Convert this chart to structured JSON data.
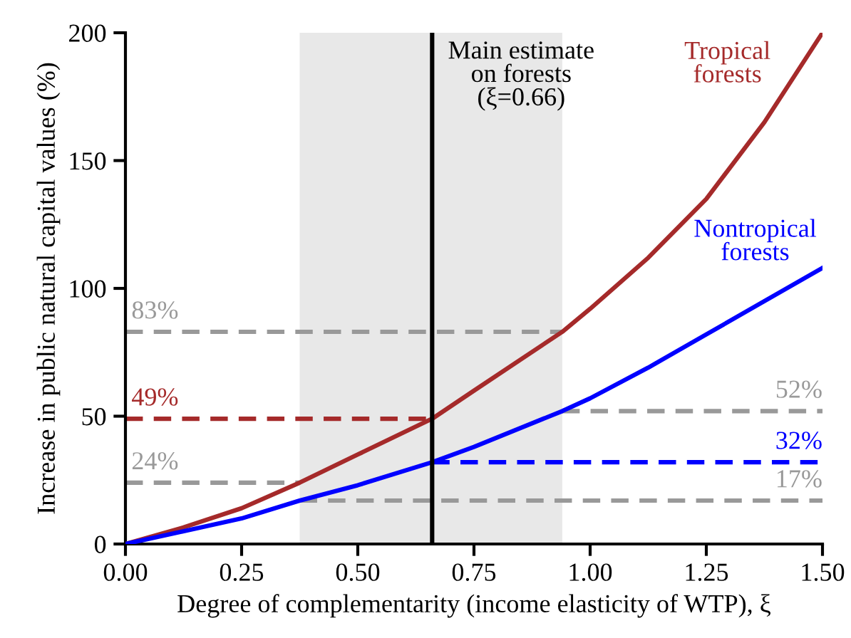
{
  "chart_data": {
    "type": "line",
    "xlabel": "Degree of complementarity (income elasticity of WTP), ξ",
    "ylabel": "Increase in public natural capital values (%)",
    "xlim": [
      0,
      1.5
    ],
    "ylim": [
      0,
      200
    ],
    "xticks": [
      {
        "value": 0,
        "label": "0.00"
      },
      0.25,
      {
        "value": 0.5,
        "label": "0.50"
      },
      0.75,
      {
        "value": 1.0,
        "label": "1.00"
      },
      1.25,
      {
        "value": 1.5,
        "label": "1.50"
      }
    ],
    "yticks": [
      0,
      50,
      100,
      150,
      200
    ],
    "grid": false,
    "legend": false,
    "bands": [
      {
        "axis": "x",
        "from": 0.375,
        "to": 0.94,
        "color": "#e8e8e8"
      }
    ],
    "ref_lines": [
      {
        "axis": "x",
        "value": 0.66,
        "label": "Main estimate\non forests\n(ξ=0.66)",
        "color": "#000000",
        "line_style": "solid"
      }
    ],
    "series": [
      {
        "name": "83%",
        "color": "#999999",
        "line_style": "dashed",
        "x": [
          0,
          0.94
        ],
        "values": [
          83,
          83
        ]
      },
      {
        "name": "49%",
        "color": "#a52a2a",
        "line_style": "dashed",
        "x": [
          0,
          0.66
        ],
        "values": [
          49,
          49
        ]
      },
      {
        "name": "24%",
        "color": "#999999",
        "line_style": "dashed",
        "x": [
          0,
          0.375
        ],
        "values": [
          24,
          24
        ]
      },
      {
        "name": "52%",
        "color": "#999999",
        "line_style": "dashed",
        "x": [
          0.94,
          1.5
        ],
        "values": [
          52,
          52
        ]
      },
      {
        "name": "32%",
        "color": "#0000ff",
        "line_style": "dashed",
        "x": [
          0.66,
          1.5
        ],
        "values": [
          32,
          32
        ]
      },
      {
        "name": "17%",
        "color": "#999999",
        "line_style": "dashed",
        "x": [
          0.375,
          1.5
        ],
        "values": [
          17,
          17
        ]
      },
      {
        "name": "Tropical\nforests",
        "color": "#a52a2a",
        "line_style": "solid",
        "x": [
          0,
          0.125,
          0.25,
          0.375,
          0.5,
          0.66,
          0.75,
          0.94,
          1.0,
          1.125,
          1.25,
          1.375,
          1.5
        ],
        "values": [
          0,
          6.5,
          14,
          24,
          35,
          49,
          60,
          83,
          92,
          112,
          135,
          165,
          200
        ]
      },
      {
        "name": "Nontropical\nforests",
        "color": "#0000ff",
        "line_style": "solid",
        "x": [
          0,
          0.25,
          0.375,
          0.5,
          0.66,
          0.75,
          0.94,
          1.0,
          1.125,
          1.25,
          1.375,
          1.5
        ],
        "values": [
          0,
          10,
          17,
          23,
          32,
          38,
          52,
          57,
          69,
          82,
          95,
          108
        ]
      }
    ]
  }
}
